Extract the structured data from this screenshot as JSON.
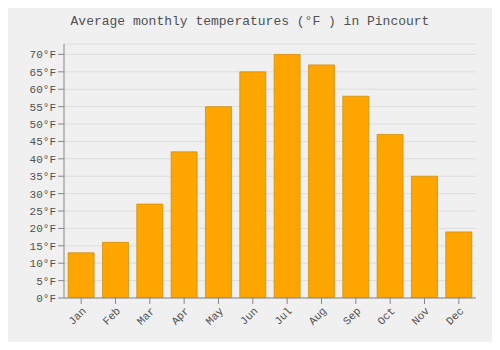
{
  "chart_data": {
    "type": "bar",
    "title": "Average monthly temperatures (°F ) in Pincourt",
    "categories": [
      "Jan",
      "Feb",
      "Mar",
      "Apr",
      "May",
      "Jun",
      "Jul",
      "Aug",
      "Sep",
      "Oct",
      "Nov",
      "Dec"
    ],
    "values": [
      13,
      16,
      27,
      42,
      55,
      65,
      70,
      67,
      58,
      47,
      35,
      19
    ],
    "color": "#FFA500",
    "ylim": [
      0,
      73
    ],
    "yticks": [
      {
        "value": 0,
        "label": "0°F"
      },
      {
        "value": 5,
        "label": "5°F"
      },
      {
        "value": 10,
        "label": "10°F"
      },
      {
        "value": 15,
        "label": "15°F"
      },
      {
        "value": 20,
        "label": "20°F"
      },
      {
        "value": 25,
        "label": "25°F"
      },
      {
        "value": 30,
        "label": "30°F"
      },
      {
        "value": 35,
        "label": "35°F"
      },
      {
        "value": 40,
        "label": "40°F"
      },
      {
        "value": 45,
        "label": "45°F"
      },
      {
        "value": 50,
        "label": "50°F"
      },
      {
        "value": 55,
        "label": "55°F"
      },
      {
        "value": 60,
        "label": "60°F"
      },
      {
        "value": 65,
        "label": "65°F"
      },
      {
        "value": 70,
        "label": "70°F"
      }
    ],
    "grid": true
  }
}
